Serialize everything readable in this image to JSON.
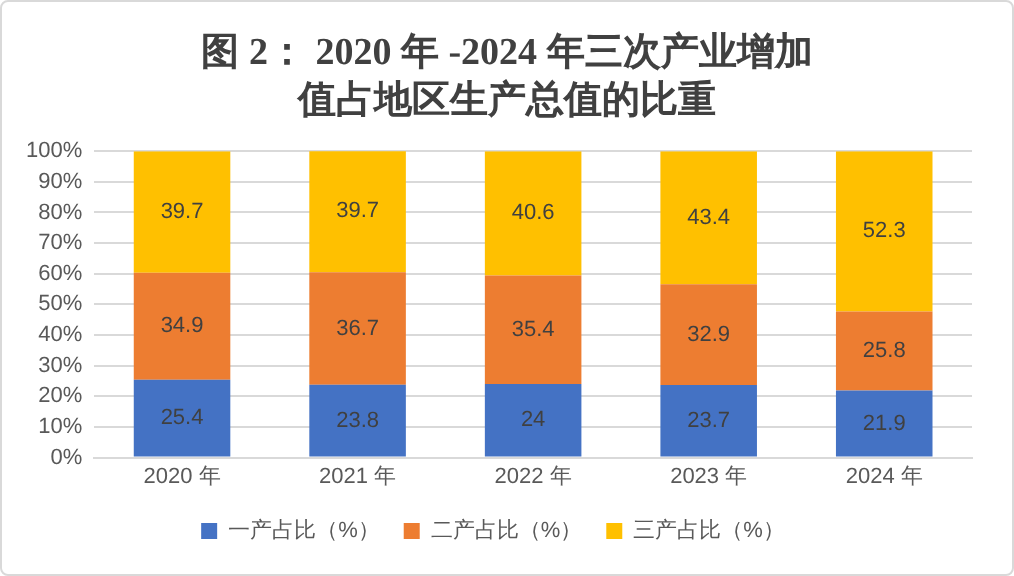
{
  "chart_data": {
    "type": "bar",
    "title": "图 2： 2020 年 -2024 年三次产业增加值占地区生产总值的比重",
    "categories": [
      "2020 年",
      "2021 年",
      "2022 年",
      "2023 年",
      "2024 年"
    ],
    "series": [
      {
        "name": "一产占比（%）",
        "color": "#4472c4",
        "values": [
          25.4,
          23.8,
          24,
          23.7,
          21.9
        ]
      },
      {
        "name": "二产占比（%）",
        "color": "#ed7d31",
        "values": [
          34.9,
          36.7,
          35.4,
          32.9,
          25.8
        ]
      },
      {
        "name": "三产占比（%）",
        "color": "#ffc000",
        "values": [
          39.7,
          39.7,
          40.6,
          43.4,
          52.3
        ]
      }
    ],
    "stacked": true,
    "ylim": [
      0,
      100
    ],
    "yticks": [
      {
        "value": 0,
        "label": "0%"
      },
      {
        "value": 10,
        "label": "10%"
      },
      {
        "value": 20,
        "label": "20%"
      },
      {
        "value": 30,
        "label": "30%"
      },
      {
        "value": 40,
        "label": "40%"
      },
      {
        "value": 50,
        "label": "50%"
      },
      {
        "value": 60,
        "label": "60%"
      },
      {
        "value": 70,
        "label": "70%"
      },
      {
        "value": 80,
        "label": "80%"
      },
      {
        "value": 90,
        "label": "90%"
      },
      {
        "value": 100,
        "label": "100%"
      }
    ],
    "grid": "y",
    "legend": "bottom",
    "data_labels": true
  }
}
